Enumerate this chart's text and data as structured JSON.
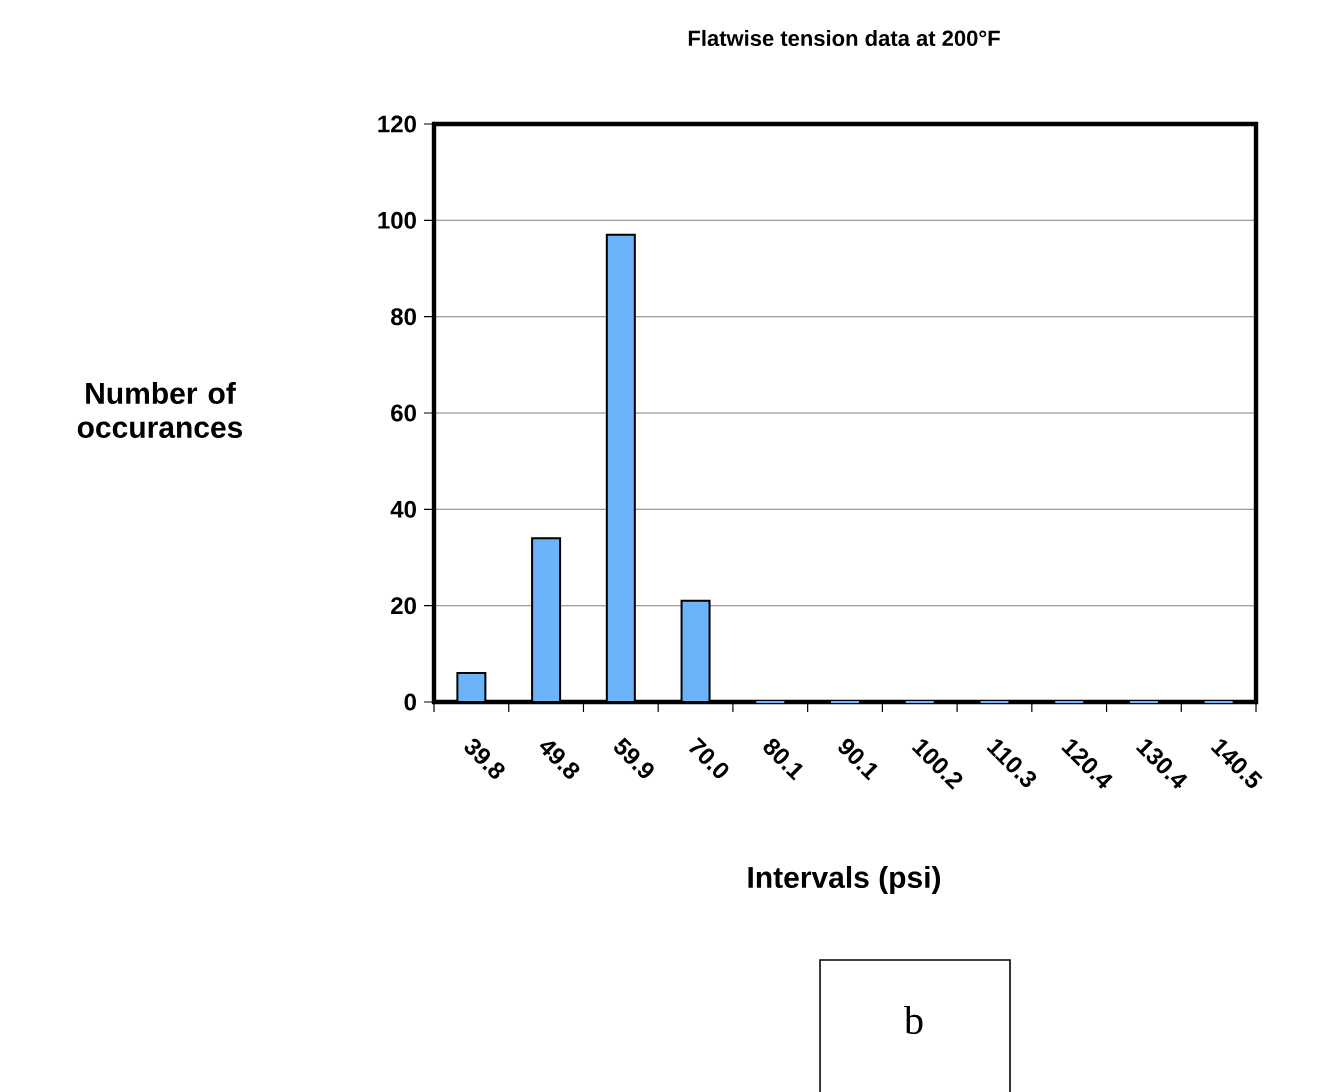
{
  "chart_data": {
    "type": "bar",
    "title": "Flatwise tension data at 200°F",
    "xlabel": "Intervals (psi)",
    "ylabel": "Number of occurances",
    "categories": [
      "39.8",
      "49.8",
      "59.9",
      "70.0",
      "80.1",
      "90.1",
      "100.2",
      "110.3",
      "120.4",
      "130.4",
      "140.5"
    ],
    "values": [
      6,
      34,
      97,
      21,
      0,
      0,
      0,
      0,
      0,
      0,
      0
    ],
    "color": "#6cb4f8",
    "ylim": [
      0,
      120
    ],
    "yticks": [
      0,
      20,
      40,
      60,
      80,
      100,
      120
    ],
    "grid": "y",
    "annotations": [
      "b"
    ]
  }
}
